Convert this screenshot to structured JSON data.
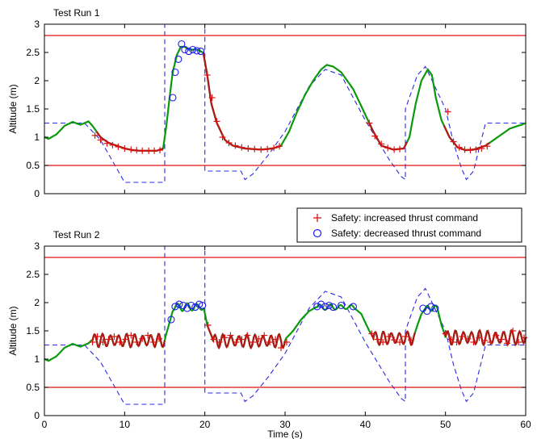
{
  "chart_data": [
    {
      "type": "line",
      "title": "Test Run 1",
      "xlabel": "",
      "ylabel": "Altitude (m)",
      "xlim": [
        0,
        60
      ],
      "ylim": [
        0,
        3
      ],
      "x_ticks": [
        "0",
        "10",
        "20",
        "30",
        "40",
        "50",
        "60"
      ],
      "y_ticks": [
        "0",
        "0.5",
        "1",
        "1.5",
        "2",
        "2.5",
        "3"
      ],
      "show_x_tick_labels": false,
      "grid": false,
      "limits": [
        2.8,
        0.5
      ],
      "reference_dashed": [
        [
          0,
          1.25
        ],
        [
          5,
          1.25
        ],
        [
          7,
          0.95
        ],
        [
          10,
          0.2
        ],
        [
          15,
          0.2
        ],
        [
          15,
          3.0
        ],
        [
          20,
          3.0
        ],
        [
          20,
          0.4
        ],
        [
          24.5,
          0.4
        ],
        [
          25,
          0.25
        ],
        [
          26,
          0.35
        ],
        [
          28,
          0.7
        ],
        [
          30,
          1.1
        ],
        [
          33,
          1.9
        ],
        [
          35,
          2.2
        ],
        [
          37,
          2.1
        ],
        [
          40,
          1.3
        ],
        [
          43,
          0.6
        ],
        [
          44.5,
          0.3
        ],
        [
          45,
          0.25
        ],
        [
          45,
          1.5
        ],
        [
          46.5,
          2.1
        ],
        [
          47.5,
          2.25
        ],
        [
          50,
          1.5
        ],
        [
          51,
          0.9
        ],
        [
          52,
          0.45
        ],
        [
          52.6,
          0.25
        ],
        [
          53.5,
          0.4
        ],
        [
          55,
          1.25
        ],
        [
          60,
          1.25
        ]
      ],
      "altitude_trace": [
        [
          0,
          1.0
        ],
        [
          0.5,
          0.97
        ],
        [
          1.5,
          1.05
        ],
        [
          2.5,
          1.2
        ],
        [
          3.5,
          1.27
        ],
        [
          4.5,
          1.22
        ],
        [
          5.5,
          1.28
        ],
        [
          6,
          1.2
        ],
        [
          7,
          1.0
        ],
        [
          8,
          0.9
        ],
        [
          9,
          0.85
        ],
        [
          10,
          0.8
        ],
        [
          11,
          0.77
        ],
        [
          12,
          0.76
        ],
        [
          13,
          0.76
        ],
        [
          14,
          0.76
        ],
        [
          14.8,
          0.8
        ],
        [
          15.2,
          1.2
        ],
        [
          15.6,
          1.7
        ],
        [
          16,
          2.15
        ],
        [
          16.5,
          2.45
        ],
        [
          17,
          2.6
        ],
        [
          17.5,
          2.6
        ],
        [
          18,
          2.55
        ],
        [
          19,
          2.55
        ],
        [
          19.8,
          2.5
        ],
        [
          20.3,
          2.1
        ],
        [
          20.8,
          1.6
        ],
        [
          21.5,
          1.25
        ],
        [
          22.5,
          0.95
        ],
        [
          23.5,
          0.85
        ],
        [
          25,
          0.8
        ],
        [
          27,
          0.78
        ],
        [
          28.5,
          0.8
        ],
        [
          29.5,
          0.85
        ],
        [
          30.5,
          1.1
        ],
        [
          31.5,
          1.45
        ],
        [
          32.5,
          1.75
        ],
        [
          33.5,
          2.0
        ],
        [
          34.5,
          2.2
        ],
        [
          35.2,
          2.28
        ],
        [
          36,
          2.25
        ],
        [
          37,
          2.15
        ],
        [
          38.5,
          1.85
        ],
        [
          40,
          1.4
        ],
        [
          41,
          1.1
        ],
        [
          42,
          0.85
        ],
        [
          43.5,
          0.78
        ],
        [
          44.8,
          0.8
        ],
        [
          45.5,
          1.0
        ],
        [
          46.3,
          1.6
        ],
        [
          47,
          2.0
        ],
        [
          47.8,
          2.2
        ],
        [
          48.3,
          2.1
        ],
        [
          48.8,
          1.7
        ],
        [
          49.5,
          1.3
        ],
        [
          50.5,
          1.0
        ],
        [
          51.5,
          0.82
        ],
        [
          52.5,
          0.77
        ],
        [
          53.5,
          0.78
        ],
        [
          55,
          0.85
        ],
        [
          56,
          0.95
        ],
        [
          57,
          1.05
        ],
        [
          58,
          1.15
        ],
        [
          59,
          1.2
        ],
        [
          59.5,
          1.22
        ],
        [
          60,
          1.25
        ]
      ],
      "safety_segments": [
        [
          6.5,
          14.8
        ],
        [
          19.8,
          29.5
        ],
        [
          40.5,
          45.2
        ],
        [
          49.8,
          55.5
        ]
      ],
      "increased_thrust_markers": [
        [
          6.3,
          1.03
        ],
        [
          7,
          0.95
        ],
        [
          7.8,
          0.89
        ],
        [
          8.5,
          0.86
        ],
        [
          9.2,
          0.83
        ],
        [
          10,
          0.8
        ],
        [
          10.8,
          0.78
        ],
        [
          11.5,
          0.77
        ],
        [
          12.2,
          0.76
        ],
        [
          13,
          0.76
        ],
        [
          13.7,
          0.76
        ],
        [
          14.4,
          0.77
        ],
        [
          20.3,
          2.1
        ],
        [
          20.9,
          1.7
        ],
        [
          21.5,
          1.28
        ],
        [
          22.2,
          1.0
        ],
        [
          23,
          0.9
        ],
        [
          23.8,
          0.85
        ],
        [
          24.6,
          0.82
        ],
        [
          25.4,
          0.8
        ],
        [
          26.2,
          0.79
        ],
        [
          27,
          0.78
        ],
        [
          27.8,
          0.79
        ],
        [
          28.6,
          0.81
        ],
        [
          29.3,
          0.84
        ],
        [
          40.5,
          1.25
        ],
        [
          41.2,
          1.02
        ],
        [
          42,
          0.88
        ],
        [
          42.8,
          0.81
        ],
        [
          43.6,
          0.78
        ],
        [
          44.3,
          0.79
        ],
        [
          50.3,
          1.45
        ],
        [
          51,
          0.92
        ],
        [
          51.7,
          0.82
        ],
        [
          52.4,
          0.78
        ],
        [
          53.1,
          0.77
        ],
        [
          53.8,
          0.78
        ],
        [
          54.5,
          0.8
        ],
        [
          55.2,
          0.84
        ]
      ],
      "decreased_thrust_markers": [
        [
          16,
          1.7
        ],
        [
          16.3,
          2.15
        ],
        [
          16.7,
          2.38
        ],
        [
          17.1,
          2.65
        ],
        [
          17.5,
          2.55
        ],
        [
          18,
          2.52
        ],
        [
          18.5,
          2.55
        ],
        [
          19,
          2.53
        ],
        [
          19.5,
          2.52
        ]
      ]
    },
    {
      "type": "line",
      "title": "Test Run 2",
      "xlabel": "Time (s)",
      "ylabel": "Altitude (m)",
      "xlim": [
        0,
        60
      ],
      "ylim": [
        0,
        3
      ],
      "x_ticks": [
        "0",
        "10",
        "20",
        "30",
        "40",
        "50",
        "60"
      ],
      "y_ticks": [
        "0",
        "0.5",
        "1",
        "1.5",
        "2",
        "2.5",
        "3"
      ],
      "show_x_tick_labels": true,
      "grid": false,
      "legend_position": "top-right",
      "legend": [
        {
          "label": "Safety: increased thrust command",
          "marker": "plus",
          "color": "#dd1111"
        },
        {
          "label": "Safety: decreased thrust command",
          "marker": "circle",
          "color": "#1a1aee"
        }
      ],
      "limits": [
        2.8,
        0.5
      ],
      "reference_dashed": [
        [
          0,
          1.25
        ],
        [
          5,
          1.25
        ],
        [
          7,
          0.95
        ],
        [
          10,
          0.2
        ],
        [
          15,
          0.2
        ],
        [
          15,
          3.0
        ],
        [
          20,
          3.0
        ],
        [
          20,
          0.4
        ],
        [
          24.5,
          0.4
        ],
        [
          25,
          0.25
        ],
        [
          26,
          0.35
        ],
        [
          28,
          0.7
        ],
        [
          30,
          1.1
        ],
        [
          33,
          1.9
        ],
        [
          35,
          2.2
        ],
        [
          37,
          2.1
        ],
        [
          40,
          1.3
        ],
        [
          43,
          0.6
        ],
        [
          44.5,
          0.3
        ],
        [
          45,
          0.25
        ],
        [
          45,
          1.5
        ],
        [
          46.5,
          2.1
        ],
        [
          47.5,
          2.25
        ],
        [
          50,
          1.5
        ],
        [
          51,
          0.9
        ],
        [
          52,
          0.45
        ],
        [
          52.6,
          0.25
        ],
        [
          53.5,
          0.4
        ],
        [
          55,
          1.25
        ],
        [
          60,
          1.25
        ]
      ],
      "altitude_trace": [
        [
          0,
          1.0
        ],
        [
          0.5,
          0.97
        ],
        [
          1.5,
          1.05
        ],
        [
          2.5,
          1.2
        ],
        [
          3.5,
          1.27
        ],
        [
          4.5,
          1.22
        ],
        [
          5.5,
          1.28
        ],
        [
          6,
          1.35
        ],
        [
          15,
          1.35
        ],
        [
          15.5,
          1.6
        ],
        [
          16,
          1.85
        ],
        [
          16.5,
          1.93
        ],
        [
          19.8,
          1.95
        ],
        [
          20.3,
          1.6
        ],
        [
          21,
          1.35
        ],
        [
          30,
          1.35
        ],
        [
          31,
          1.5
        ],
        [
          32,
          1.7
        ],
        [
          33,
          1.85
        ],
        [
          34,
          1.93
        ],
        [
          38.5,
          1.92
        ],
        [
          39.5,
          1.8
        ],
        [
          40.5,
          1.5
        ],
        [
          41,
          1.38
        ],
        [
          46,
          1.38
        ],
        [
          46.5,
          1.6
        ],
        [
          47,
          1.8
        ],
        [
          47.5,
          1.9
        ],
        [
          49,
          1.9
        ],
        [
          49.5,
          1.6
        ],
        [
          50,
          1.4
        ],
        [
          60,
          1.4
        ]
      ],
      "safety_segments": [
        [
          6,
          15
        ],
        [
          20.3,
          30
        ],
        [
          40.8,
          46.2
        ],
        [
          49.8,
          60
        ]
      ],
      "oscillating_segments": [
        {
          "x_range": [
            6,
            15
          ],
          "base": 1.33,
          "amplitude": 0.12,
          "period": 1.0
        },
        {
          "x_range": [
            16.3,
            19.8
          ],
          "base": 1.92,
          "amplitude": 0.07,
          "period": 1.2
        },
        {
          "x_range": [
            21,
            30
          ],
          "base": 1.32,
          "amplitude": 0.12,
          "period": 1.0
        },
        {
          "x_range": [
            34,
            38.5
          ],
          "base": 1.92,
          "amplitude": 0.05,
          "period": 1.3
        },
        {
          "x_range": [
            41,
            46
          ],
          "base": 1.37,
          "amplitude": 0.12,
          "period": 1.0
        },
        {
          "x_range": [
            47.5,
            49
          ],
          "base": 1.9,
          "amplitude": 0.05,
          "period": 1.0
        },
        {
          "x_range": [
            50,
            60
          ],
          "base": 1.38,
          "amplitude": 0.13,
          "period": 1.0
        }
      ],
      "increased_thrust_markers": [
        [
          6,
          1.3
        ],
        [
          6.6,
          1.4
        ],
        [
          7.3,
          1.3
        ],
        [
          8,
          1.35
        ],
        [
          8.7,
          1.4
        ],
        [
          9.4,
          1.3
        ],
        [
          10.1,
          1.35
        ],
        [
          10.8,
          1.42
        ],
        [
          11.5,
          1.3
        ],
        [
          12.2,
          1.36
        ],
        [
          12.9,
          1.42
        ],
        [
          13.6,
          1.3
        ],
        [
          14.3,
          1.36
        ],
        [
          20.4,
          1.6
        ],
        [
          21.1,
          1.35
        ],
        [
          21.8,
          1.3
        ],
        [
          22.5,
          1.38
        ],
        [
          23.2,
          1.42
        ],
        [
          23.9,
          1.3
        ],
        [
          24.6,
          1.35
        ],
        [
          25.3,
          1.42
        ],
        [
          26,
          1.3
        ],
        [
          26.7,
          1.36
        ],
        [
          27.4,
          1.42
        ],
        [
          28.1,
          1.3
        ],
        [
          28.8,
          1.35
        ],
        [
          29.5,
          1.2
        ],
        [
          30.2,
          1.3
        ],
        [
          40.8,
          1.45
        ],
        [
          41.5,
          1.35
        ],
        [
          42.2,
          1.3
        ],
        [
          42.9,
          1.4
        ],
        [
          43.6,
          1.34
        ],
        [
          44.3,
          1.3
        ],
        [
          45,
          1.4
        ],
        [
          45.7,
          1.34
        ],
        [
          50,
          1.45
        ],
        [
          50.7,
          1.35
        ],
        [
          51.4,
          1.3
        ],
        [
          52.1,
          1.4
        ],
        [
          52.8,
          1.36
        ],
        [
          53.5,
          1.3
        ],
        [
          54.2,
          1.38
        ],
        [
          54.9,
          1.33
        ],
        [
          55.6,
          1.3
        ],
        [
          56.3,
          1.42
        ],
        [
          57,
          1.35
        ],
        [
          57.7,
          1.28
        ],
        [
          58.4,
          1.5
        ],
        [
          59.1,
          1.3
        ],
        [
          59.8,
          1.38
        ]
      ],
      "decreased_thrust_markers": [
        [
          15.8,
          1.7
        ],
        [
          16.3,
          1.93
        ],
        [
          16.8,
          1.97
        ],
        [
          17.3,
          1.95
        ],
        [
          17.8,
          1.9
        ],
        [
          18.3,
          1.95
        ],
        [
          18.8,
          1.92
        ],
        [
          19.3,
          1.97
        ],
        [
          19.7,
          1.95
        ],
        [
          34,
          1.93
        ],
        [
          34.5,
          1.97
        ],
        [
          35,
          1.93
        ],
        [
          35.5,
          1.95
        ],
        [
          36,
          1.92
        ],
        [
          37,
          1.95
        ],
        [
          38.5,
          1.93
        ],
        [
          47.2,
          1.9
        ],
        [
          47.7,
          1.85
        ],
        [
          48.2,
          1.93
        ],
        [
          48.7,
          1.9
        ]
      ]
    }
  ]
}
